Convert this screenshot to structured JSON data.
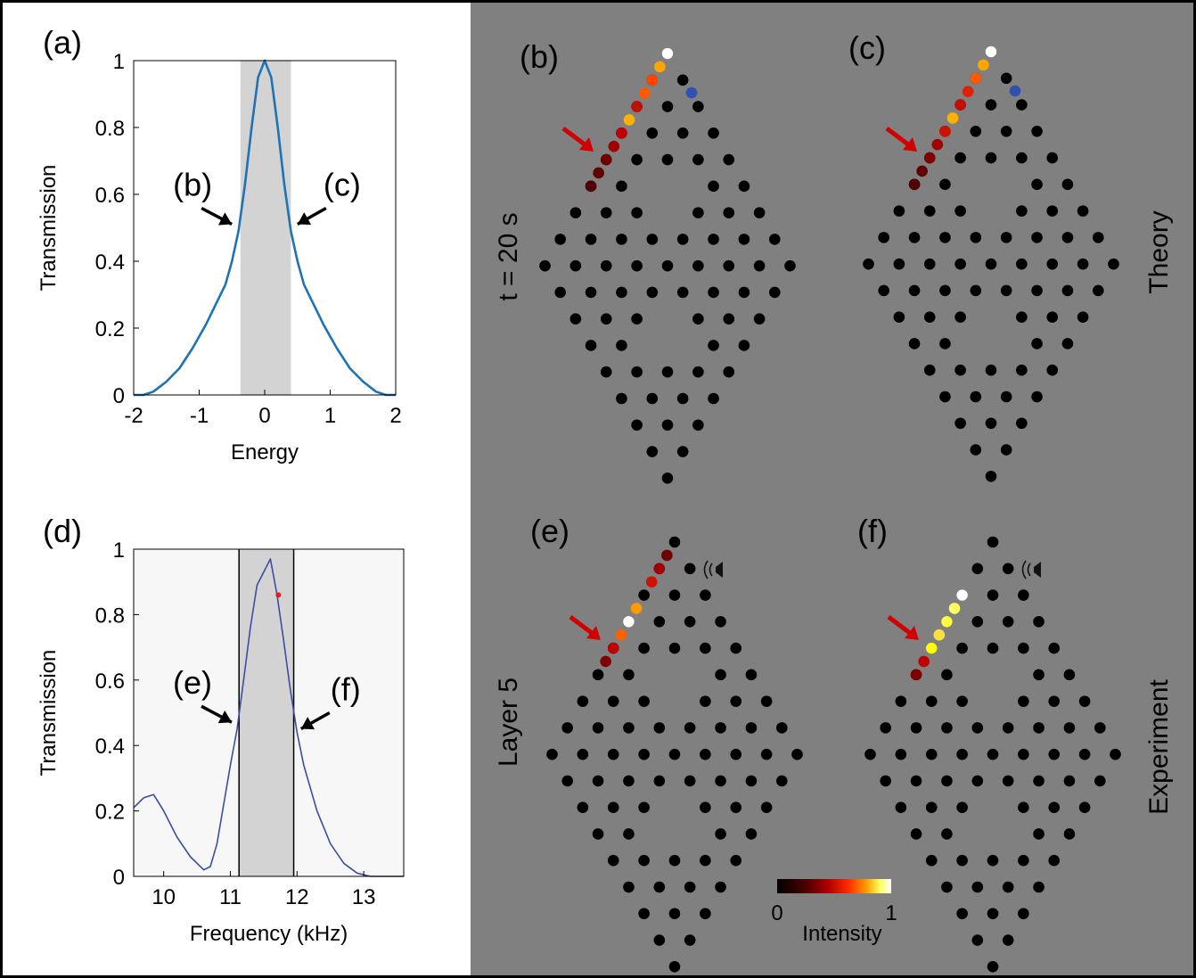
{
  "figure": {
    "panel_labels": {
      "a": "(a)",
      "b": "(b)",
      "c": "(c)",
      "d": "(d)",
      "e": "(e)",
      "f": "(f)"
    },
    "row_labels": {
      "top": "t = 20 s",
      "bottom": "Layer 5"
    },
    "side_labels": {
      "top": "Theory",
      "bottom": "Experiment"
    },
    "colorbar": {
      "min": "0",
      "max": "1",
      "label": "Intensity",
      "colors": [
        "#000000",
        "#4a0000",
        "#b00000",
        "#ff2a00",
        "#ff9a00",
        "#ffff60",
        "#ffffff"
      ]
    },
    "colors": {
      "grey_panel": "#808080",
      "dark_site": "#000000",
      "arrow_red": "#d00000",
      "curve_a": "#1f73b4",
      "curve_d": "#3b4da3",
      "band": "#d3d3d3"
    },
    "speaker_icon": "speaker-icon"
  },
  "chart_data": [
    {
      "type": "line",
      "panel": "(a)",
      "xlabel": "Energy",
      "ylabel": "Transmission",
      "xlim": [
        -2,
        2
      ],
      "ylim": [
        0,
        1
      ],
      "xticks": [
        "-2",
        "-1",
        "0",
        "1",
        "2"
      ],
      "yticks": [
        "0",
        "0.2",
        "0.4",
        "0.6",
        "0.8",
        "1"
      ],
      "band": [
        -0.37,
        0.4
      ],
      "annotations": [
        {
          "text": "(b)",
          "x": -0.42,
          "y": 0.5
        },
        {
          "text": "(c)",
          "x": 0.42,
          "y": 0.5
        }
      ],
      "series": [
        {
          "x": [
            -2,
            -1.85,
            -1.7,
            -1.5,
            -1.3,
            -1.1,
            -0.9,
            -0.75,
            -0.6,
            -0.5,
            -0.4,
            -0.3,
            -0.2,
            -0.1,
            0,
            0.1,
            0.2,
            0.3,
            0.4,
            0.5,
            0.6,
            0.75,
            0.9,
            1.1,
            1.3,
            1.5,
            1.7,
            1.85,
            2
          ],
          "y": [
            0,
            0.0,
            0.01,
            0.04,
            0.08,
            0.14,
            0.21,
            0.27,
            0.33,
            0.4,
            0.49,
            0.63,
            0.8,
            0.95,
            1.0,
            0.95,
            0.8,
            0.63,
            0.49,
            0.4,
            0.33,
            0.27,
            0.21,
            0.14,
            0.08,
            0.04,
            0.01,
            0.0,
            0
          ]
        }
      ]
    },
    {
      "type": "line",
      "panel": "(d)",
      "xlabel": "Frequency (kHz)",
      "ylabel": "Transmission",
      "xlim": [
        9.55,
        13.6
      ],
      "ylim": [
        0,
        1
      ],
      "xticks": [
        "10",
        "11",
        "12",
        "13"
      ],
      "yticks": [
        "0",
        "0.2",
        "0.4",
        "0.6",
        "0.8",
        "1"
      ],
      "band": [
        11.13,
        11.95
      ],
      "marker": {
        "x": 11.72,
        "y": 0.86,
        "color": "#e02020"
      },
      "annotations": [
        {
          "text": "(e)",
          "x": 11.1,
          "y": 0.46
        },
        {
          "text": "(f)",
          "x": 11.98,
          "y": 0.44
        }
      ],
      "series": [
        {
          "x": [
            9.55,
            9.7,
            9.85,
            10.0,
            10.2,
            10.4,
            10.6,
            10.7,
            10.8,
            10.9,
            11.0,
            11.1,
            11.2,
            11.3,
            11.4,
            11.5,
            11.6,
            11.7,
            11.8,
            11.9,
            12.0,
            12.1,
            12.3,
            12.5,
            12.7,
            12.9,
            13.1,
            13.3,
            13.6
          ],
          "y": [
            0.21,
            0.24,
            0.25,
            0.2,
            0.12,
            0.06,
            0.02,
            0.03,
            0.1,
            0.22,
            0.34,
            0.45,
            0.6,
            0.76,
            0.89,
            0.93,
            0.97,
            0.86,
            0.72,
            0.57,
            0.44,
            0.34,
            0.2,
            0.1,
            0.04,
            0.01,
            0.0,
            0.0,
            0.0
          ]
        }
      ]
    }
  ]
}
